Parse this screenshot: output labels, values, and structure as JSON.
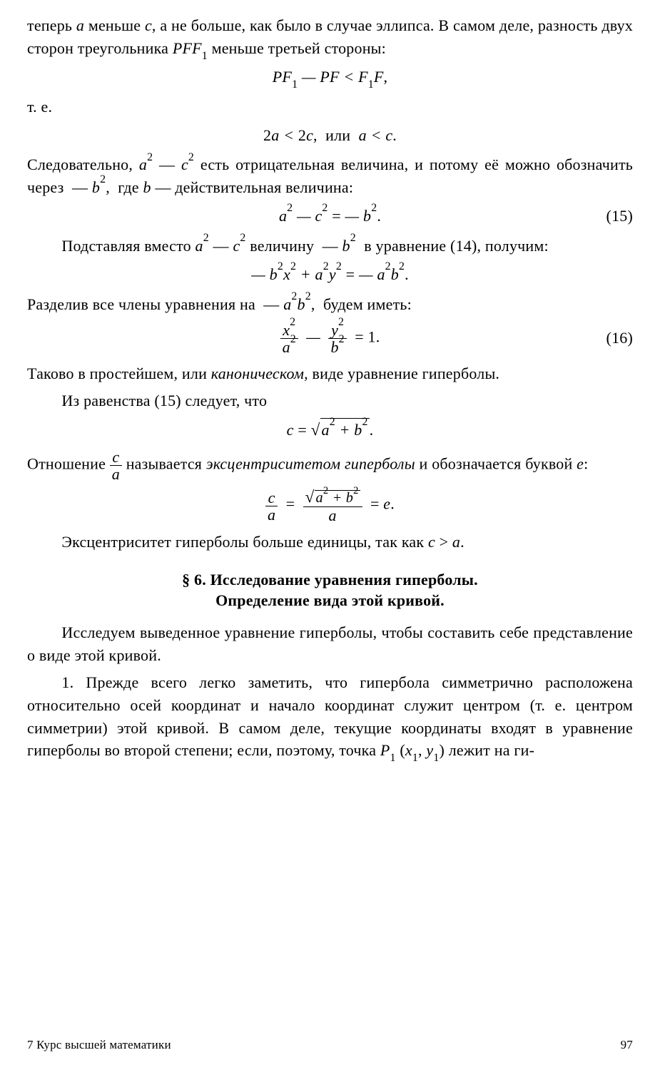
{
  "page_number": "97",
  "footer_left": "7  Курс высшей математики",
  "section_title_line1": "§ 6. Исследование уравнения гиперболы.",
  "section_title_line2": "Определение вида этой кривой.",
  "eq_num_15": "(15)",
  "eq_num_16": "(16)",
  "p1": "теперь a меньше c, а не больше, как было в случае эллипса. В самом деле, разность двух сторон треугольника PFF₁ меньше третьей стороны:",
  "eq1": "PF₁ — PF < F₁F,",
  "p2": "т. е.",
  "eq2": "2a < 2c,  или  a < c.",
  "p3": "Следовательно, a² — c² есть отрицательная величина, и потому её можно обозначить через  — b²,  где b — действительная величина:",
  "eq3": "a² — c² = — b².",
  "p4": "Подставляя вместо a² — c² величину  — b²  в уравнение (14), получим:",
  "eq4": "— b²x² + a²y² = — a²b².",
  "p5": "Разделив все члены уравнения на  — a²b²,  будем иметь:",
  "p6a": "Таково в простейшем, или ",
  "p6b_ital": "каноническом,",
  "p6c": " виде уравнение гиперболы.",
  "p7": "Из равенства (15) следует, что",
  "p8a": "Отношение ",
  "p8b": " называется ",
  "p8c_ital": "эксцентриситетом гиперболы",
  "p8d": " и обозначается буквой e:",
  "p9": "Эксцентриситет гиперболы больше единицы, так как c > a.",
  "p10": "Исследуем выведенное уравнение гиперболы, чтобы составить себе представление о виде этой кривой.",
  "p11": "1. Прежде всего легко заметить, что гипербола симметрично расположена относительно осей координат и начало координат служит центром (т. е. центром симметрии) этой кривой. В самом деле, текущие координаты входят в уравнение гиперболы во второй степени; если, поэтому, точка P₁ (x₁, y₁) лежит на ги-"
}
